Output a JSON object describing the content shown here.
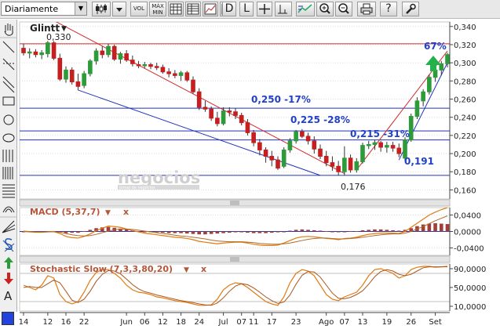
{
  "toolbar": {
    "period_select": "Diariamente",
    "volume_label": "VOL",
    "minmax_label": "MÁX MIN",
    "d_label": "D",
    "l_label": "L",
    "help_label": "?"
  },
  "main": {
    "ticker": "Glintt",
    "ticker_arrow": "▼",
    "top_note": "0,330",
    "price_ticks": [
      "0,340",
      "0,320",
      "0,300",
      "0,280",
      "0,260",
      "0,240",
      "0,220",
      "0,200",
      "0,180",
      "0,160"
    ],
    "annotations": {
      "pct67": "67%",
      "l250": "0,250  -17%",
      "l225": "0,225 -28%",
      "l215": "0,215  -31%",
      "v191": "0,191",
      "v176": "0,176"
    },
    "watermark": "negocios",
    "watermark_sub": "jornal de negócios"
  },
  "macd": {
    "title": "MACD (5,37,7)",
    "arrow": "▼",
    "close": "x",
    "ticks": [
      "0,0400",
      "0,0000",
      "-0,0400"
    ]
  },
  "stoch": {
    "title": "Stochastic Slow (7,3,3,80,20)",
    "arrow": "▼",
    "close": "x",
    "ticks": [
      "90,0000",
      "50,0000",
      "10,0000"
    ]
  },
  "xaxis": {
    "labels": [
      "14",
      "12",
      "16",
      "22",
      "Jun",
      "06",
      "12",
      "18",
      "24",
      "Jul",
      "07",
      "11",
      "17",
      "23",
      "Ago",
      "07",
      "13",
      "19",
      "26",
      "Set"
    ]
  },
  "colors": {
    "up": "#2e9b3a",
    "down": "#c61f1f",
    "trend_red": "#d22b2b",
    "trend_blue": "#2233bb",
    "annot_blue": "#2041c8",
    "panel_title": "#b5563a",
    "macd_hist": "#a0403a",
    "macd_line": "#e07a10",
    "stoch_line": "#e07a10"
  },
  "chart_data": {
    "type": "candlestick",
    "candles": [
      {
        "o": 0.316,
        "h": 0.321,
        "l": 0.308,
        "c": 0.311
      },
      {
        "o": 0.311,
        "h": 0.316,
        "l": 0.305,
        "c": 0.312
      },
      {
        "o": 0.312,
        "h": 0.315,
        "l": 0.306,
        "c": 0.309
      },
      {
        "o": 0.309,
        "h": 0.314,
        "l": 0.304,
        "c": 0.311
      },
      {
        "o": 0.31,
        "h": 0.324,
        "l": 0.306,
        "c": 0.322
      },
      {
        "o": 0.322,
        "h": 0.324,
        "l": 0.303,
        "c": 0.305
      },
      {
        "o": 0.305,
        "h": 0.31,
        "l": 0.28,
        "c": 0.282
      },
      {
        "o": 0.282,
        "h": 0.296,
        "l": 0.278,
        "c": 0.292
      },
      {
        "o": 0.292,
        "h": 0.295,
        "l": 0.276,
        "c": 0.279
      },
      {
        "o": 0.279,
        "h": 0.288,
        "l": 0.27,
        "c": 0.274
      },
      {
        "o": 0.275,
        "h": 0.291,
        "l": 0.272,
        "c": 0.288
      },
      {
        "o": 0.288,
        "h": 0.304,
        "l": 0.285,
        "c": 0.302
      },
      {
        "o": 0.302,
        "h": 0.316,
        "l": 0.298,
        "c": 0.313
      },
      {
        "o": 0.313,
        "h": 0.318,
        "l": 0.305,
        "c": 0.309
      },
      {
        "o": 0.309,
        "h": 0.321,
        "l": 0.306,
        "c": 0.318
      },
      {
        "o": 0.318,
        "h": 0.32,
        "l": 0.302,
        "c": 0.304
      },
      {
        "o": 0.304,
        "h": 0.312,
        "l": 0.299,
        "c": 0.31
      },
      {
        "o": 0.31,
        "h": 0.314,
        "l": 0.301,
        "c": 0.303
      },
      {
        "o": 0.303,
        "h": 0.308,
        "l": 0.296,
        "c": 0.299
      },
      {
        "o": 0.298,
        "h": 0.302,
        "l": 0.294,
        "c": 0.297
      },
      {
        "o": 0.297,
        "h": 0.301,
        "l": 0.294,
        "c": 0.298
      },
      {
        "o": 0.298,
        "h": 0.3,
        "l": 0.293,
        "c": 0.296
      },
      {
        "o": 0.296,
        "h": 0.3,
        "l": 0.292,
        "c": 0.295
      },
      {
        "o": 0.295,
        "h": 0.298,
        "l": 0.288,
        "c": 0.29
      },
      {
        "o": 0.29,
        "h": 0.294,
        "l": 0.284,
        "c": 0.288
      },
      {
        "o": 0.288,
        "h": 0.292,
        "l": 0.283,
        "c": 0.286
      },
      {
        "o": 0.286,
        "h": 0.291,
        "l": 0.28,
        "c": 0.289
      },
      {
        "o": 0.289,
        "h": 0.291,
        "l": 0.279,
        "c": 0.281
      },
      {
        "o": 0.281,
        "h": 0.285,
        "l": 0.266,
        "c": 0.268
      },
      {
        "o": 0.268,
        "h": 0.272,
        "l": 0.248,
        "c": 0.251
      },
      {
        "o": 0.251,
        "h": 0.258,
        "l": 0.246,
        "c": 0.249
      },
      {
        "o": 0.249,
        "h": 0.252,
        "l": 0.236,
        "c": 0.239
      },
      {
        "o": 0.239,
        "h": 0.246,
        "l": 0.23,
        "c": 0.233
      },
      {
        "o": 0.233,
        "h": 0.251,
        "l": 0.231,
        "c": 0.247
      },
      {
        "o": 0.247,
        "h": 0.251,
        "l": 0.241,
        "c": 0.246
      },
      {
        "o": 0.246,
        "h": 0.25,
        "l": 0.238,
        "c": 0.242
      },
      {
        "o": 0.242,
        "h": 0.245,
        "l": 0.231,
        "c": 0.234
      },
      {
        "o": 0.234,
        "h": 0.238,
        "l": 0.22,
        "c": 0.223
      },
      {
        "o": 0.223,
        "h": 0.226,
        "l": 0.208,
        "c": 0.212
      },
      {
        "o": 0.212,
        "h": 0.216,
        "l": 0.198,
        "c": 0.204
      },
      {
        "o": 0.204,
        "h": 0.207,
        "l": 0.19,
        "c": 0.197
      },
      {
        "o": 0.197,
        "h": 0.203,
        "l": 0.186,
        "c": 0.193
      },
      {
        "o": 0.193,
        "h": 0.197,
        "l": 0.182,
        "c": 0.184
      },
      {
        "o": 0.186,
        "h": 0.207,
        "l": 0.184,
        "c": 0.204
      },
      {
        "o": 0.204,
        "h": 0.217,
        "l": 0.201,
        "c": 0.214
      },
      {
        "o": 0.214,
        "h": 0.226,
        "l": 0.211,
        "c": 0.224
      },
      {
        "o": 0.224,
        "h": 0.227,
        "l": 0.217,
        "c": 0.219
      },
      {
        "o": 0.219,
        "h": 0.223,
        "l": 0.21,
        "c": 0.214
      },
      {
        "o": 0.214,
        "h": 0.219,
        "l": 0.2,
        "c": 0.205
      },
      {
        "o": 0.205,
        "h": 0.21,
        "l": 0.194,
        "c": 0.197
      },
      {
        "o": 0.197,
        "h": 0.203,
        "l": 0.186,
        "c": 0.19
      },
      {
        "o": 0.19,
        "h": 0.197,
        "l": 0.181,
        "c": 0.186
      },
      {
        "o": 0.186,
        "h": 0.192,
        "l": 0.176,
        "c": 0.18
      },
      {
        "o": 0.18,
        "h": 0.208,
        "l": 0.176,
        "c": 0.195
      },
      {
        "o": 0.195,
        "h": 0.199,
        "l": 0.179,
        "c": 0.182
      },
      {
        "o": 0.182,
        "h": 0.195,
        "l": 0.179,
        "c": 0.191
      },
      {
        "o": 0.191,
        "h": 0.212,
        "l": 0.189,
        "c": 0.209
      },
      {
        "o": 0.209,
        "h": 0.214,
        "l": 0.205,
        "c": 0.21
      },
      {
        "o": 0.21,
        "h": 0.215,
        "l": 0.204,
        "c": 0.212
      },
      {
        "o": 0.212,
        "h": 0.214,
        "l": 0.202,
        "c": 0.207
      },
      {
        "o": 0.207,
        "h": 0.213,
        "l": 0.201,
        "c": 0.209
      },
      {
        "o": 0.209,
        "h": 0.213,
        "l": 0.202,
        "c": 0.206
      },
      {
        "o": 0.206,
        "h": 0.211,
        "l": 0.196,
        "c": 0.2
      },
      {
        "o": 0.195,
        "h": 0.218,
        "l": 0.191,
        "c": 0.215
      },
      {
        "o": 0.215,
        "h": 0.244,
        "l": 0.213,
        "c": 0.241
      },
      {
        "o": 0.241,
        "h": 0.262,
        "l": 0.238,
        "c": 0.258
      },
      {
        "o": 0.258,
        "h": 0.271,
        "l": 0.252,
        "c": 0.268
      },
      {
        "o": 0.268,
        "h": 0.287,
        "l": 0.265,
        "c": 0.284
      },
      {
        "o": 0.284,
        "h": 0.296,
        "l": 0.279,
        "c": 0.292
      },
      {
        "o": 0.292,
        "h": 0.302,
        "l": 0.286,
        "c": 0.299
      },
      {
        "o": 0.299,
        "h": 0.311,
        "l": 0.295,
        "c": 0.309
      }
    ],
    "horizontal_lines": [
      {
        "value": 0.321,
        "color": "red"
      },
      {
        "value": 0.25,
        "color": "blue"
      },
      {
        "value": 0.225,
        "color": "blue"
      },
      {
        "value": 0.215,
        "color": "blue"
      },
      {
        "value": 0.176,
        "color": "blue"
      }
    ],
    "macd_histogram": [
      -0.002,
      -0.002,
      -0.001,
      0.0,
      0.001,
      0.001,
      -0.002,
      -0.004,
      -0.003,
      -0.003,
      0.001,
      0.004,
      0.008,
      0.01,
      0.011,
      0.009,
      0.007,
      0.005,
      0.003,
      0.001,
      0.0,
      -0.001,
      -0.002,
      -0.003,
      -0.004,
      -0.004,
      -0.004,
      -0.005,
      -0.006,
      -0.007,
      -0.007,
      -0.006,
      -0.005,
      -0.004,
      -0.003,
      -0.002,
      -0.002,
      -0.003,
      -0.004,
      -0.004,
      -0.004,
      -0.003,
      -0.002,
      0.0,
      0.002,
      0.004,
      0.005,
      0.004,
      0.003,
      0.002,
      0.001,
      0.0,
      -0.001,
      0.0,
      0.001,
      0.001,
      0.003,
      0.004,
      0.005,
      0.005,
      0.004,
      0.003,
      0.002,
      0.004,
      0.008,
      0.013,
      0.017,
      0.019,
      0.02,
      0.019,
      0.018
    ],
    "macd_line": [
      0.0,
      -0.001,
      -0.002,
      -0.002,
      -0.001,
      0.0,
      -0.005,
      -0.012,
      -0.015,
      -0.016,
      -0.012,
      -0.006,
      0.002,
      0.008,
      0.013,
      0.012,
      0.01,
      0.006,
      0.002,
      -0.001,
      -0.004,
      -0.006,
      -0.008,
      -0.01,
      -0.012,
      -0.014,
      -0.015,
      -0.017,
      -0.02,
      -0.024,
      -0.026,
      -0.028,
      -0.03,
      -0.028,
      -0.027,
      -0.026,
      -0.026,
      -0.028,
      -0.031,
      -0.033,
      -0.034,
      -0.034,
      -0.033,
      -0.028,
      -0.022,
      -0.016,
      -0.013,
      -0.012,
      -0.013,
      -0.015,
      -0.017,
      -0.018,
      -0.02,
      -0.017,
      -0.016,
      -0.014,
      -0.01,
      -0.007,
      -0.005,
      -0.004,
      -0.004,
      -0.004,
      -0.005,
      0.0,
      0.01,
      0.02,
      0.03,
      0.04,
      0.047,
      0.053,
      0.058
    ],
    "macd_signal": [
      0.001,
      0.0,
      -0.001,
      -0.001,
      -0.001,
      -0.001,
      -0.002,
      -0.005,
      -0.008,
      -0.01,
      -0.011,
      -0.01,
      -0.007,
      -0.003,
      0.001,
      0.004,
      0.006,
      0.006,
      0.005,
      0.003,
      0.001,
      -0.001,
      -0.003,
      -0.005,
      -0.007,
      -0.009,
      -0.011,
      -0.012,
      -0.014,
      -0.016,
      -0.018,
      -0.021,
      -0.023,
      -0.024,
      -0.025,
      -0.025,
      -0.025,
      -0.026,
      -0.027,
      -0.029,
      -0.03,
      -0.031,
      -0.031,
      -0.03,
      -0.028,
      -0.025,
      -0.022,
      -0.019,
      -0.017,
      -0.016,
      -0.016,
      -0.017,
      -0.018,
      -0.018,
      -0.017,
      -0.016,
      -0.014,
      -0.012,
      -0.01,
      -0.008,
      -0.007,
      -0.006,
      -0.006,
      -0.004,
      0.0,
      0.006,
      0.012,
      0.019,
      0.026,
      0.032,
      0.038
    ],
    "stoch_k": [
      55,
      50,
      45,
      55,
      75,
      70,
      35,
      20,
      15,
      20,
      40,
      65,
      82,
      88,
      88,
      80,
      70,
      55,
      45,
      40,
      38,
      35,
      30,
      28,
      25,
      22,
      20,
      18,
      15,
      12,
      12,
      13,
      25,
      45,
      55,
      60,
      58,
      50,
      40,
      30,
      20,
      15,
      12,
      30,
      60,
      80,
      88,
      85,
      75,
      55,
      35,
      25,
      22,
      30,
      35,
      40,
      55,
      75,
      88,
      90,
      85,
      80,
      70,
      75,
      88,
      93,
      95,
      95,
      93,
      94,
      95
    ],
    "stoch_d": [
      50,
      52,
      50,
      50,
      58,
      66,
      60,
      42,
      23,
      18,
      25,
      42,
      63,
      78,
      86,
      85,
      79,
      68,
      56,
      47,
      41,
      38,
      34,
      31,
      28,
      25,
      22,
      20,
      18,
      15,
      13,
      12,
      17,
      28,
      42,
      53,
      58,
      56,
      49,
      40,
      30,
      22,
      16,
      19,
      34,
      57,
      76,
      84,
      83,
      72,
      55,
      38,
      27,
      26,
      29,
      35,
      43,
      57,
      73,
      84,
      88,
      85,
      78,
      75,
      78,
      85,
      92,
      94,
      94,
      94,
      94
    ]
  }
}
